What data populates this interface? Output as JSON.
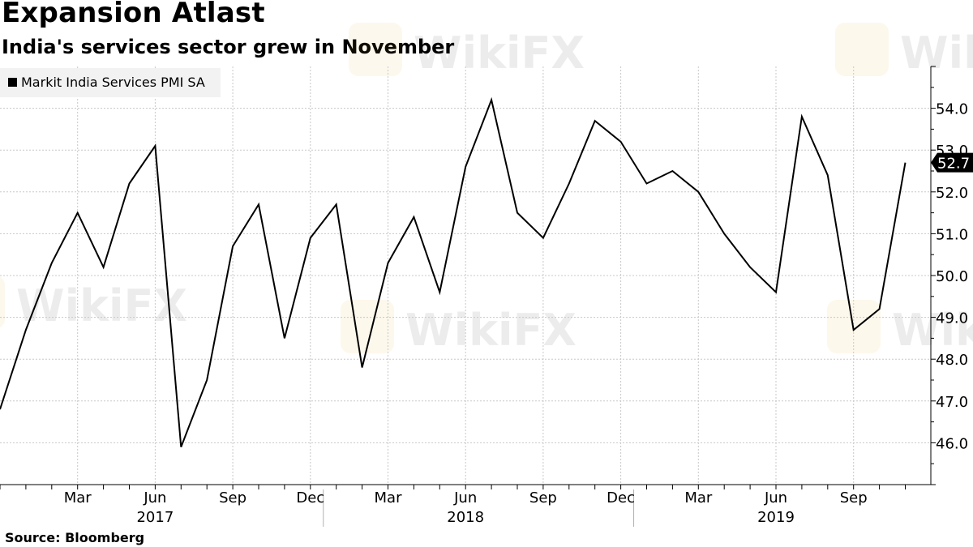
{
  "title": "Expansion Atlast",
  "subtitle": "India's services sector grew in November",
  "source": "Source: Bloomberg",
  "watermark": "WikiFX",
  "chart_data": {
    "type": "line",
    "series": [
      {
        "name": "Markit India Services PMI SA",
        "x": [
          "2016-12",
          "2017-01",
          "2017-02",
          "2017-03",
          "2017-04",
          "2017-05",
          "2017-06",
          "2017-07",
          "2017-08",
          "2017-09",
          "2017-10",
          "2017-11",
          "2017-12",
          "2018-01",
          "2018-02",
          "2018-03",
          "2018-04",
          "2018-05",
          "2018-06",
          "2018-07",
          "2018-08",
          "2018-09",
          "2018-10",
          "2018-11",
          "2018-12",
          "2019-01",
          "2019-02",
          "2019-03",
          "2019-04",
          "2019-05",
          "2019-06",
          "2019-07",
          "2019-08",
          "2019-09",
          "2019-10",
          "2019-11"
        ],
        "values": [
          46.8,
          48.7,
          50.3,
          51.5,
          50.2,
          52.2,
          53.1,
          45.9,
          47.5,
          50.7,
          51.7,
          48.5,
          50.9,
          51.7,
          47.8,
          50.3,
          51.4,
          49.6,
          52.6,
          54.2,
          51.5,
          50.9,
          52.2,
          53.7,
          53.2,
          52.2,
          52.5,
          52.0,
          51.0,
          50.2,
          49.6,
          53.8,
          52.4,
          48.7,
          49.2,
          52.7
        ],
        "color": "#000000"
      }
    ],
    "last_value_label": "52.7",
    "ylim": [
      45.0,
      55.0
    ],
    "y_ticks": [
      46.0,
      47.0,
      48.0,
      49.0,
      50.0,
      51.0,
      52.0,
      53.0,
      54.0
    ],
    "y_tick_labels": [
      "46.0",
      "47.0",
      "48.0",
      "49.0",
      "50.0",
      "51.0",
      "52.0",
      "53.0",
      "54.0"
    ],
    "y_axis_position": "right",
    "x_tick_labels": [
      {
        "month": "2017-03",
        "label": "Mar"
      },
      {
        "month": "2017-06",
        "label": "Jun"
      },
      {
        "month": "2017-09",
        "label": "Sep"
      },
      {
        "month": "2017-12",
        "label": "Dec"
      },
      {
        "month": "2018-03",
        "label": "Mar"
      },
      {
        "month": "2018-06",
        "label": "Jun"
      },
      {
        "month": "2018-09",
        "label": "Sep"
      },
      {
        "month": "2018-12",
        "label": "Dec"
      },
      {
        "month": "2019-03",
        "label": "Mar"
      },
      {
        "month": "2019-06",
        "label": "Jun"
      },
      {
        "month": "2019-09",
        "label": "Sep"
      }
    ],
    "year_labels": [
      {
        "month": "2017-06",
        "label": "2017"
      },
      {
        "month": "2018-06",
        "label": "2018"
      },
      {
        "month": "2019-06",
        "label": "2019"
      }
    ],
    "year_separators": [
      "2017-12",
      "2018-12"
    ],
    "grid": true,
    "legend_position": "top-left",
    "xlabel": "",
    "ylabel": ""
  }
}
